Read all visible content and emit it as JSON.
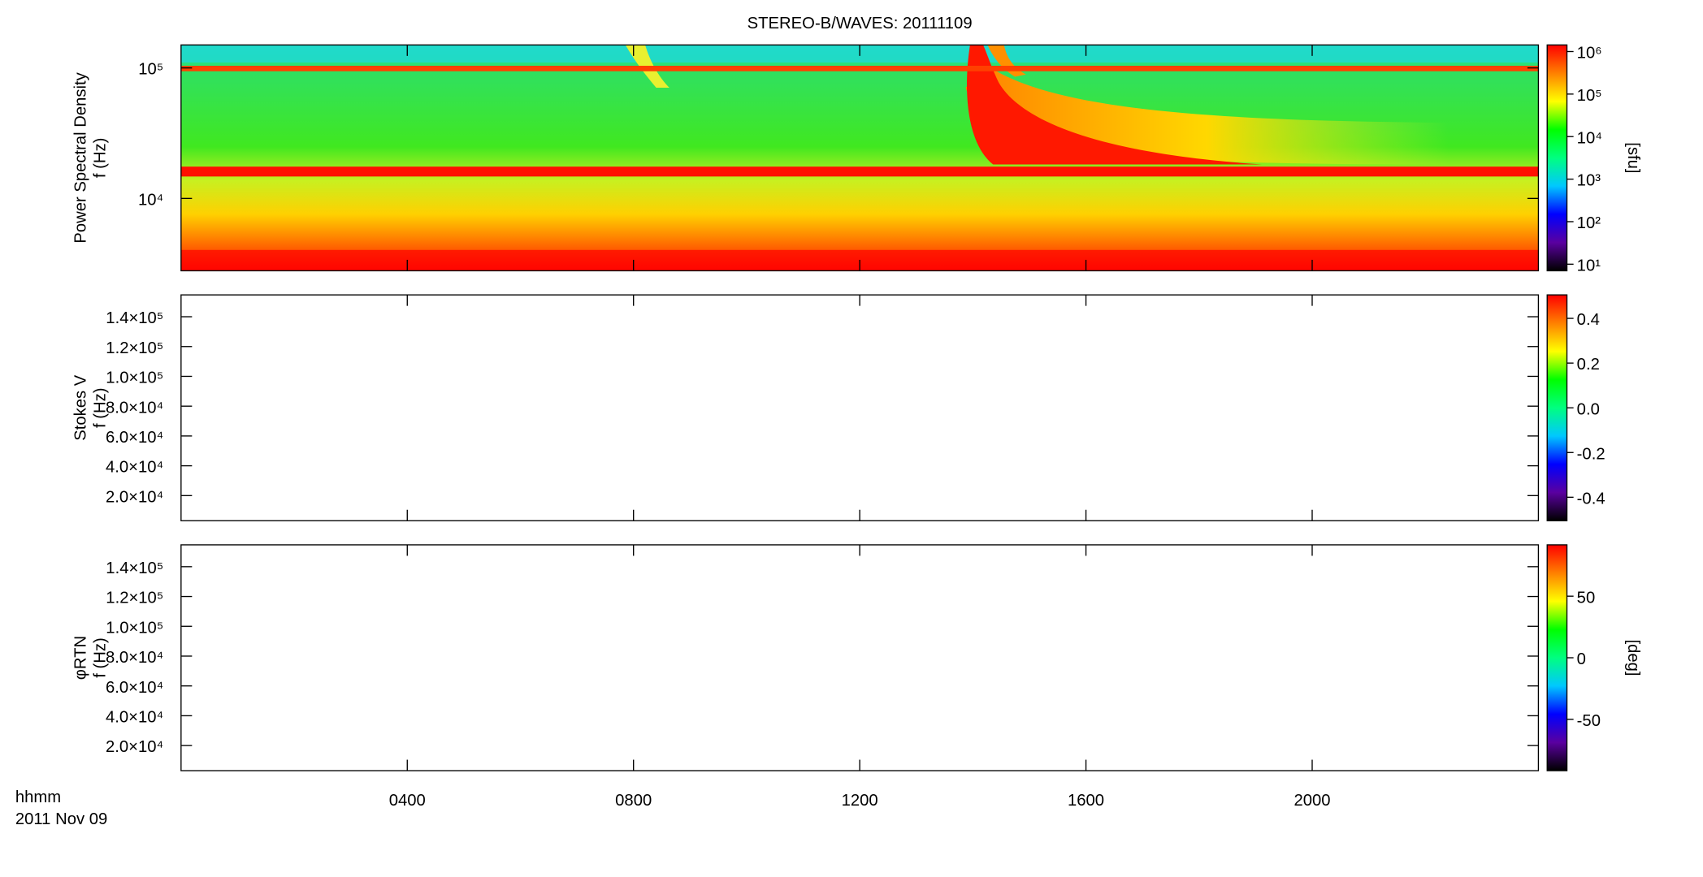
{
  "chart_data": [
    {
      "type": "spectrogram",
      "title": "STEREO-B/WAVES: 20111109",
      "ylabel": [
        "Power Spectral Density",
        "f (Hz)"
      ],
      "log_y": true,
      "ylim": [
        2790,
        150000
      ],
      "yticks": [
        {
          "value": 10000,
          "label": "10⁴"
        },
        {
          "value": 100000,
          "label": "10⁵"
        }
      ],
      "zlabel": "[sfu]",
      "log_z": true,
      "zlim": [
        7,
        1430000
      ],
      "zticks": [
        {
          "value": 10,
          "label": "10¹"
        },
        {
          "value": 100,
          "label": "10²"
        },
        {
          "value": 1000,
          "label": "10³"
        },
        {
          "value": 10000,
          "label": "10⁴"
        },
        {
          "value": 100000,
          "label": "10⁵"
        },
        {
          "value": 1000000,
          "label": "10⁶"
        }
      ],
      "colormap": [
        "#000000",
        "#5a00a0",
        "#0000ff",
        "#00c8ff",
        "#00ff80",
        "#00ff00",
        "#ffff00",
        "#ff8000",
        "#ff0000"
      ]
    },
    {
      "type": "spectrogram",
      "ylabel": [
        "Stokes V",
        "f (Hz)"
      ],
      "log_y": false,
      "ylim": [
        3150,
        154650
      ],
      "yticks": [
        {
          "value": 20000,
          "label": "2.0×10⁴"
        },
        {
          "value": 40000,
          "label": "4.0×10⁴"
        },
        {
          "value": 60000,
          "label": "6.0×10⁴"
        },
        {
          "value": 80000,
          "label": "8.0×10⁴"
        },
        {
          "value": 100000,
          "label": "1.0×10⁵"
        },
        {
          "value": 120000,
          "label": "1.2×10⁵"
        },
        {
          "value": 140000,
          "label": "1.4×10⁵"
        }
      ],
      "log_z": false,
      "zlim": [
        -0.505,
        0.505
      ],
      "zticks": [
        -0.4,
        -0.2,
        {
          "value": 0,
          "label": "0.0"
        },
        0.2,
        0.4
      ]
    },
    {
      "type": "spectrogram",
      "ylabel": [
        "φRTN",
        "f (Hz)"
      ],
      "log_y": false,
      "ylim": [
        3150,
        154650
      ],
      "yticks": [
        {
          "value": 20000,
          "label": "2.0×10⁴"
        },
        {
          "value": 40000,
          "label": "4.0×10⁴"
        },
        {
          "value": 60000,
          "label": "6.0×10⁴"
        },
        {
          "value": 80000,
          "label": "8.0×10⁴"
        },
        {
          "value": 100000,
          "label": "1.0×10⁵"
        },
        {
          "value": 120000,
          "label": "1.2×10⁵"
        },
        {
          "value": 140000,
          "label": "1.4×10⁵"
        }
      ],
      "zlabel": "[deg]",
      "log_z": false,
      "zlim": [
        -91.7,
        91.7
      ],
      "zticks": [
        -50,
        0,
        50
      ],
      "xlabel": "hhmm",
      "date": "2011 Nov 09",
      "xlim": [
        0,
        24
      ],
      "xticks": [
        {
          "value": 4,
          "label": "0400"
        },
        {
          "value": 8,
          "label": "0800"
        },
        {
          "value": 12,
          "label": "1200"
        },
        {
          "value": 16,
          "label": "1600"
        },
        {
          "value": 20,
          "label": "2000"
        }
      ]
    }
  ]
}
